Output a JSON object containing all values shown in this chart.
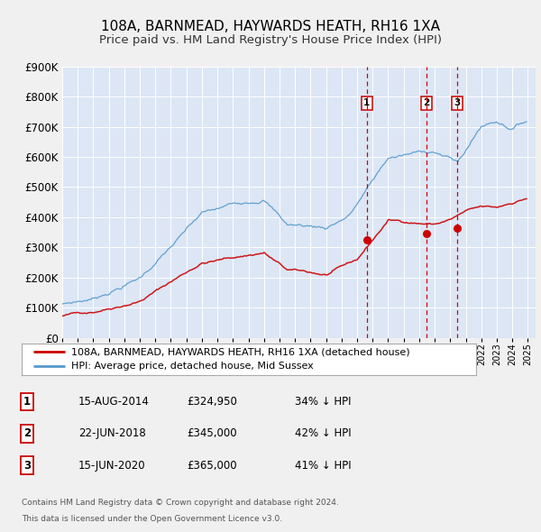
{
  "title": "108A, BARNMEAD, HAYWARDS HEATH, RH16 1XA",
  "subtitle": "Price paid vs. HM Land Registry's House Price Index (HPI)",
  "background_color": "#f0f0f0",
  "plot_bg_color": "#dce6f5",
  "grid_color": "#ffffff",
  "title_fontsize": 11,
  "subtitle_fontsize": 9.5,
  "ylim": [
    0,
    900000
  ],
  "xlim_start": 1995.0,
  "xlim_end": 2025.5,
  "sale_dates": [
    2014.621,
    2018.474,
    2020.454
  ],
  "sale_prices": [
    324950,
    345000,
    365000
  ],
  "sale_labels": [
    "1",
    "2",
    "3"
  ],
  "vline_color": "#cc0000",
  "sale_marker_color": "#cc0000",
  "legend_line1_label": "108A, BARNMEAD, HAYWARDS HEATH, RH16 1XA (detached house)",
  "legend_line2_label": "HPI: Average price, detached house, Mid Sussex",
  "table_rows": [
    {
      "num": "1",
      "date": "15-AUG-2014",
      "price": "£324,950",
      "pct": "34% ↓ HPI"
    },
    {
      "num": "2",
      "date": "22-JUN-2018",
      "price": "£345,000",
      "pct": "42% ↓ HPI"
    },
    {
      "num": "3",
      "date": "15-JUN-2020",
      "price": "£365,000",
      "pct": "41% ↓ HPI"
    }
  ],
  "footer_line1": "Contains HM Land Registry data © Crown copyright and database right 2024.",
  "footer_line2": "This data is licensed under the Open Government Licence v3.0.",
  "red_line_color": "#cc0000",
  "blue_line_color": "#5599cc",
  "ytick_labels": [
    "£0",
    "£100K",
    "£200K",
    "£300K",
    "£400K",
    "£500K",
    "£600K",
    "£700K",
    "£800K",
    "£900K"
  ],
  "ytick_values": [
    0,
    100000,
    200000,
    300000,
    400000,
    500000,
    600000,
    700000,
    800000,
    900000
  ]
}
